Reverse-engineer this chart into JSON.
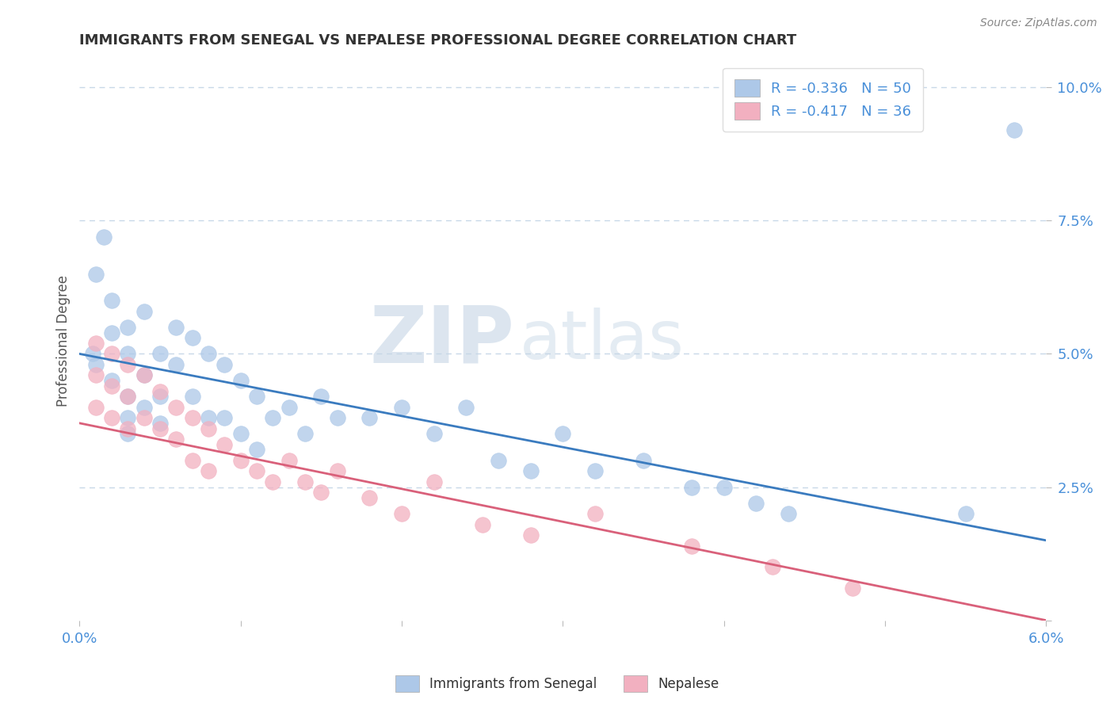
{
  "title": "IMMIGRANTS FROM SENEGAL VS NEPALESE PROFESSIONAL DEGREE CORRELATION CHART",
  "source": "Source: ZipAtlas.com",
  "ylabel": "Professional Degree",
  "xlim": [
    0.0,
    0.06
  ],
  "ylim": [
    0.0,
    0.105
  ],
  "xticks": [
    0.0,
    0.01,
    0.02,
    0.03,
    0.04,
    0.05,
    0.06
  ],
  "xticklabels": [
    "0.0%",
    "",
    "",
    "",
    "",
    "",
    "6.0%"
  ],
  "yticks": [
    0.0,
    0.025,
    0.05,
    0.075,
    0.1
  ],
  "yticklabels": [
    "",
    "2.5%",
    "5.0%",
    "7.5%",
    "10.0%"
  ],
  "blue_R": -0.336,
  "blue_N": 50,
  "pink_R": -0.417,
  "pink_N": 36,
  "blue_color": "#adc8e8",
  "pink_color": "#f2b0c0",
  "blue_line_color": "#3a7bbf",
  "pink_line_color": "#d9607a",
  "blue_scatter_x": [
    0.0008,
    0.001,
    0.001,
    0.0015,
    0.002,
    0.002,
    0.002,
    0.003,
    0.003,
    0.003,
    0.003,
    0.003,
    0.004,
    0.004,
    0.004,
    0.005,
    0.005,
    0.005,
    0.006,
    0.006,
    0.007,
    0.007,
    0.008,
    0.008,
    0.009,
    0.009,
    0.01,
    0.01,
    0.011,
    0.011,
    0.012,
    0.013,
    0.014,
    0.015,
    0.016,
    0.018,
    0.02,
    0.022,
    0.024,
    0.026,
    0.028,
    0.03,
    0.032,
    0.035,
    0.038,
    0.04,
    0.042,
    0.044,
    0.055,
    0.058
  ],
  "blue_scatter_y": [
    0.05,
    0.048,
    0.065,
    0.072,
    0.06,
    0.054,
    0.045,
    0.055,
    0.05,
    0.042,
    0.038,
    0.035,
    0.058,
    0.046,
    0.04,
    0.05,
    0.042,
    0.037,
    0.055,
    0.048,
    0.053,
    0.042,
    0.05,
    0.038,
    0.048,
    0.038,
    0.045,
    0.035,
    0.042,
    0.032,
    0.038,
    0.04,
    0.035,
    0.042,
    0.038,
    0.038,
    0.04,
    0.035,
    0.04,
    0.03,
    0.028,
    0.035,
    0.028,
    0.03,
    0.025,
    0.025,
    0.022,
    0.02,
    0.02,
    0.092
  ],
  "pink_scatter_x": [
    0.001,
    0.001,
    0.001,
    0.002,
    0.002,
    0.002,
    0.003,
    0.003,
    0.003,
    0.004,
    0.004,
    0.005,
    0.005,
    0.006,
    0.006,
    0.007,
    0.007,
    0.008,
    0.008,
    0.009,
    0.01,
    0.011,
    0.012,
    0.013,
    0.014,
    0.015,
    0.016,
    0.018,
    0.02,
    0.022,
    0.025,
    0.028,
    0.032,
    0.038,
    0.043,
    0.048
  ],
  "pink_scatter_y": [
    0.052,
    0.046,
    0.04,
    0.05,
    0.044,
    0.038,
    0.048,
    0.042,
    0.036,
    0.046,
    0.038,
    0.043,
    0.036,
    0.04,
    0.034,
    0.038,
    0.03,
    0.036,
    0.028,
    0.033,
    0.03,
    0.028,
    0.026,
    0.03,
    0.026,
    0.024,
    0.028,
    0.023,
    0.02,
    0.026,
    0.018,
    0.016,
    0.02,
    0.014,
    0.01,
    0.006
  ],
  "blue_line_x0": 0.0,
  "blue_line_y0": 0.05,
  "blue_line_x1": 0.06,
  "blue_line_y1": 0.015,
  "pink_line_x0": 0.0,
  "pink_line_y0": 0.037,
  "pink_line_x1": 0.06,
  "pink_line_y1": 0.0,
  "watermark_zip": "ZIP",
  "watermark_atlas": "atlas",
  "background_color": "#ffffff",
  "grid_color": "#c8d8e8",
  "tick_color": "#4a90d9",
  "title_color": "#333333",
  "source_color": "#888888"
}
